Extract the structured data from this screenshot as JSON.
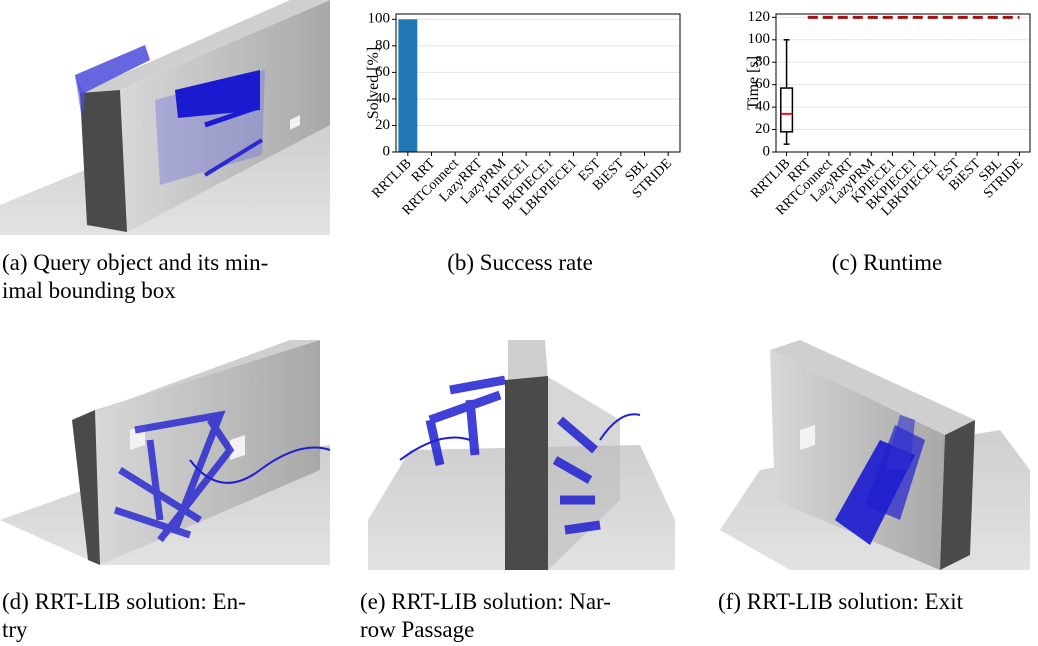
{
  "chart_data": [
    {
      "type": "bar",
      "ylabel": "Solved [%]",
      "categories": [
        "RRTLIB",
        "RRT",
        "RRTConnect",
        "LazyRRT",
        "LazyPRM",
        "KPIECE1",
        "BKPIECE1",
        "LBKPIECE1",
        "EST",
        "BiEST",
        "SBL",
        "STRIDE"
      ],
      "values": [
        100,
        0,
        0,
        0,
        0,
        0,
        0,
        0,
        0,
        0,
        0,
        0
      ],
      "color": "#1f77b4",
      "ylim": [
        0,
        104
      ],
      "yticks": [
        0,
        20,
        40,
        60,
        80,
        100
      ],
      "grid": true
    },
    {
      "type": "box",
      "ylabel": "Time [s]",
      "categories": [
        "RRTLIB",
        "RRT",
        "RRTConnect",
        "LazyRRT",
        "LazyPRM",
        "KPIECE1",
        "BKPIECE1",
        "LBKPIECE1",
        "EST",
        "BiEST",
        "SBL",
        "STRIDE"
      ],
      "boxes": [
        {
          "low": 7,
          "q1": 18,
          "median": 34,
          "q3": 57,
          "high": 100
        }
      ],
      "box_color": "#000000",
      "median_color": "#e8141a",
      "timeout": {
        "values": [
          null,
          120,
          120,
          120,
          120,
          120,
          120,
          120,
          120,
          120,
          120,
          120
        ],
        "color": "#a50f0f"
      },
      "ylim": [
        0,
        123
      ],
      "yticks": [
        0,
        20,
        40,
        60,
        80,
        100,
        120
      ],
      "grid": true
    }
  ],
  "captions": [
    [
      "(a) Query object and its min-",
      "imal bounding box"
    ],
    [
      "(b) Success rate"
    ],
    [
      "(c) Runtime"
    ],
    [
      "(d) RRT-LIB solution: En-",
      "try"
    ],
    [
      "(e) RRT-LIB solution: Nar-",
      "row Passage"
    ],
    [
      "(f) RRT-LIB solution: Exit"
    ]
  ]
}
